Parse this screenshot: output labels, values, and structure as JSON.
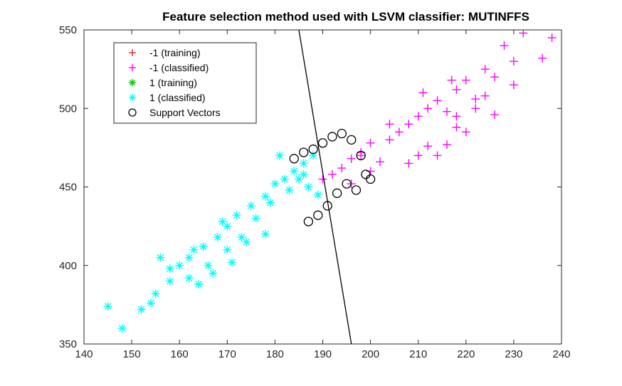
{
  "chart_data": {
    "type": "scatter",
    "title": "Feature selection method used with LSVM classifier: MUTINFFS",
    "xlabel": "",
    "ylabel": "",
    "xlim": [
      140,
      240
    ],
    "ylim": [
      350,
      550
    ],
    "xticks": [
      140,
      150,
      160,
      170,
      180,
      190,
      200,
      210,
      220,
      230,
      240
    ],
    "yticks": [
      350,
      400,
      450,
      500,
      550
    ],
    "grid": false,
    "legend_position": "top-left",
    "decision_boundary": {
      "x": [
        185,
        196
      ],
      "y": [
        550,
        350
      ],
      "color": "#000000"
    },
    "series": [
      {
        "name": "-1 (training)",
        "marker": "+",
        "color": "#d62728",
        "x": [],
        "y": []
      },
      {
        "name": "-1 (classified)",
        "marker": "+",
        "color": "#ff00ff",
        "x": [
          238,
          232,
          228,
          236,
          224,
          226,
          220,
          218,
          222,
          230,
          214,
          216,
          212,
          210,
          218,
          224,
          208,
          206,
          204,
          210,
          212,
          226,
          222,
          216,
          200,
          198,
          196,
          202,
          194,
          192,
          190,
          208,
          214,
          220,
          218,
          204,
          200,
          196,
          230,
          217,
          211,
          198
        ],
        "y": [
          545,
          548,
          540,
          532,
          525,
          520,
          518,
          512,
          506,
          515,
          505,
          498,
          500,
          495,
          488,
          508,
          490,
          485,
          480,
          470,
          476,
          496,
          500,
          477,
          478,
          472,
          468,
          466,
          462,
          458,
          455,
          465,
          470,
          485,
          495,
          490,
          460,
          452,
          530,
          518,
          510,
          470
        ]
      },
      {
        "name": "1 (training)",
        "marker": "*",
        "color": "#00cc00",
        "x": [],
        "y": []
      },
      {
        "name": "1 (classified)",
        "marker": "*",
        "color": "#00ffff",
        "x": [
          145,
          148,
          152,
          155,
          158,
          160,
          162,
          165,
          168,
          170,
          172,
          175,
          178,
          180,
          182,
          184,
          186,
          188,
          174,
          170,
          166,
          162,
          158,
          156,
          176,
          179,
          183,
          185,
          187,
          189,
          178,
          171,
          164,
          167,
          173,
          163,
          154,
          181,
          186,
          169
        ],
        "y": [
          374,
          360,
          372,
          382,
          390,
          400,
          405,
          412,
          418,
          425,
          432,
          438,
          444,
          452,
          455,
          460,
          465,
          470,
          415,
          410,
          400,
          392,
          398,
          405,
          430,
          440,
          448,
          455,
          450,
          445,
          420,
          402,
          388,
          395,
          418,
          410,
          376,
          470,
          458,
          428
        ]
      },
      {
        "name": "Support Vectors",
        "marker": "o",
        "color": "#000000",
        "x": [
          184,
          186,
          188,
          190,
          192,
          194,
          196,
          198,
          191,
          189,
          187,
          195,
          197,
          193,
          200,
          199
        ],
        "y": [
          468,
          472,
          474,
          478,
          482,
          484,
          480,
          470,
          438,
          432,
          428,
          452,
          448,
          446,
          455,
          458
        ]
      }
    ]
  }
}
